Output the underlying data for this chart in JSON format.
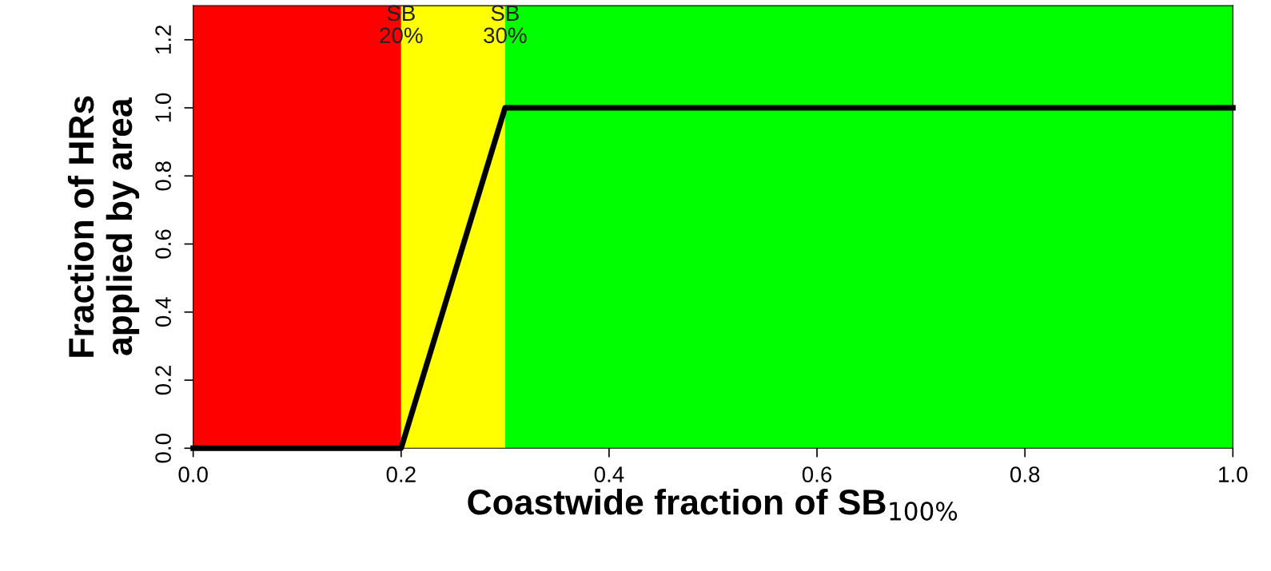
{
  "chart_data": {
    "type": "line",
    "xlabel": "Coastwide fraction of SB$_{100%}$",
    "ylabel": "Fraction of HRs\napplied by area",
    "x": [
      0,
      0.2,
      0.3,
      1.0
    ],
    "series": [
      {
        "color": "#000000",
        "values": [
          0,
          0,
          1,
          1
        ]
      }
    ],
    "xlim": [
      0,
      1.0
    ],
    "ylim": [
      0,
      1.3
    ],
    "xticks": [
      {
        "value": 0,
        "label": "0.0"
      },
      0.2,
      0.4,
      0.6,
      0.8,
      {
        "value": 1,
        "label": "1.0"
      }
    ],
    "yticks": [
      {
        "value": 0,
        "label": "0.0"
      },
      0.2,
      0.4,
      0.6,
      0.8,
      {
        "value": 1,
        "label": "1.0"
      },
      1.2
    ],
    "bands": [
      {
        "axis": "x",
        "from": 0,
        "to": 0.2,
        "color": "#ff0000"
      },
      {
        "axis": "x",
        "from": 0.2,
        "to": 0.3,
        "color": "#ffff00"
      },
      {
        "axis": "x",
        "from": 0.3,
        "to": 1.0,
        "color": "#00ff00"
      }
    ],
    "annotations": [
      {
        "text": "SB\n20%",
        "x": 0.2,
        "y": 1.24
      },
      {
        "text": "SB\n30%",
        "x": 0.3,
        "y": 1.24
      }
    ],
    "grid": false,
    "legend": false
  }
}
